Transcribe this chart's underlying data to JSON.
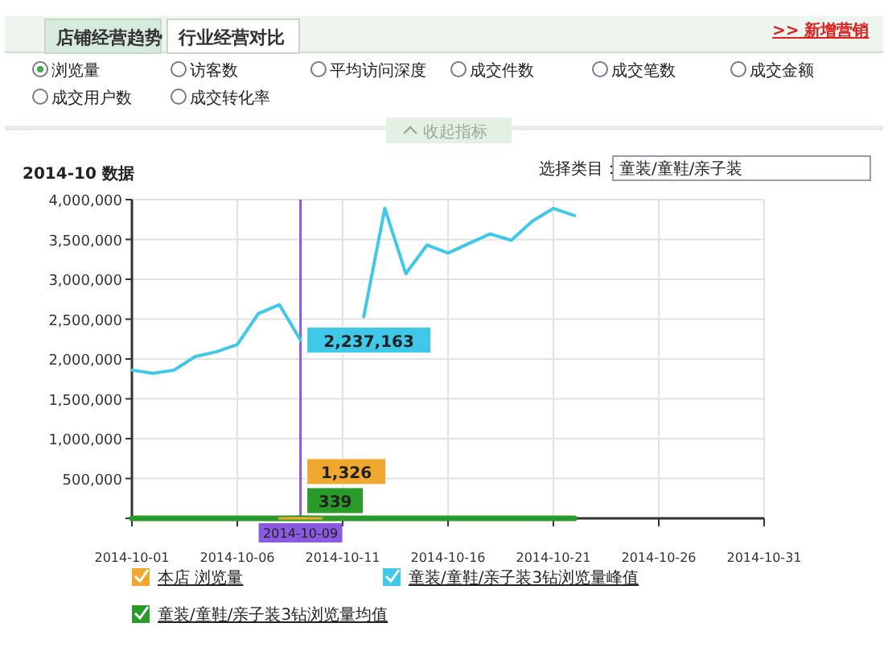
{
  "chart_data": {
    "type": "line",
    "title": "2014-10 数据",
    "x": [
      "2014-10-01",
      "2014-10-02",
      "2014-10-03",
      "2014-10-04",
      "2014-10-05",
      "2014-10-06",
      "2014-10-07",
      "2014-10-08",
      "2014-10-09",
      "2014-10-10",
      "2014-10-11",
      "2014-10-12",
      "2014-10-13",
      "2014-10-14",
      "2014-10-15",
      "2014-10-16",
      "2014-10-17",
      "2014-10-18",
      "2014-10-19",
      "2014-10-20",
      "2014-10-21",
      "2014-10-22"
    ],
    "series": [
      {
        "name": "本店 浏览量",
        "color": "#f0a830",
        "values": [
          null,
          null,
          null,
          null,
          null,
          null,
          null,
          0,
          1326,
          0,
          null,
          null,
          null,
          null,
          null,
          null,
          null,
          null,
          null,
          null,
          null,
          null
        ],
        "value_labels": [
          null,
          null,
          null,
          null,
          null,
          null,
          null,
          null,
          "1,326",
          null,
          null,
          null,
          null,
          null,
          null,
          null,
          null,
          null,
          null,
          null,
          null,
          null
        ]
      },
      {
        "name": "童装/童鞋/亲子装3钻浏览量峰值",
        "color": "#40c8e8",
        "values": [
          1860000,
          1820000,
          1860000,
          2030000,
          2090000,
          2180000,
          2570000,
          2680000,
          2237163,
          null,
          null,
          2530000,
          3890000,
          3070000,
          3430000,
          3330000,
          3450000,
          3570000,
          3490000,
          3730000,
          3890000,
          3800000
        ],
        "value_labels": [
          null,
          null,
          null,
          null,
          null,
          null,
          null,
          null,
          "2,237,163",
          null,
          null,
          null,
          null,
          null,
          null,
          null,
          null,
          null,
          null,
          null,
          null,
          null
        ]
      },
      {
        "name": "童装/童鞋/亲子装3钻浏览量均值",
        "color": "#2a9a2a",
        "values": [
          0,
          0,
          0,
          0,
          0,
          0,
          0,
          0,
          339,
          0,
          0,
          0,
          0,
          0,
          0,
          0,
          0,
          0,
          0,
          0,
          0,
          0
        ],
        "value_labels": [
          null,
          null,
          null,
          null,
          null,
          null,
          null,
          null,
          "339",
          null,
          null,
          null,
          null,
          null,
          null,
          null,
          null,
          null,
          null,
          null,
          null,
          null
        ]
      }
    ],
    "xlim": [
      "2014-10-01",
      "2014-10-31"
    ],
    "xticks": [
      "2014-10-01",
      "2014-10-06",
      "2014-10-11",
      "2014-10-16",
      "2014-10-21",
      "2014-10-26",
      "2014-10-31"
    ],
    "ylim": [
      0,
      4000000
    ],
    "yticks": [
      {
        "value": 0,
        "label": null
      },
      {
        "value": 500000,
        "label": "500,000"
      },
      {
        "value": 1000000,
        "label": "1,000,000"
      },
      {
        "value": 1500000,
        "label": "1,500,000"
      },
      {
        "value": 2000000,
        "label": "2,000,000"
      },
      {
        "value": 2500000,
        "label": "2,500,000"
      },
      {
        "value": 3000000,
        "label": "3,000,000"
      },
      {
        "value": 3500000,
        "label": "3,500,000"
      },
      {
        "value": 4000000,
        "label": "4,000,000"
      }
    ],
    "ref_lines": [
      {
        "axis": "x",
        "value": "2014-10-09",
        "label": "2014-10-09",
        "color": "#8a5ae0"
      }
    ],
    "grid": true,
    "legend": "bottom",
    "marker": "none",
    "line_style": "solid",
    "annotations": [
      "店铺经营趋势",
      "行业经营对比",
      "浏览量",
      "访客数",
      "平均访问深度",
      "成交件数",
      "成交笔数",
      "成交金额",
      "成交用户数",
      "成交转化率",
      "收起指标",
      "选择类目：",
      "童装/童鞋/亲子装",
      ">> 新增营销"
    ]
  }
}
